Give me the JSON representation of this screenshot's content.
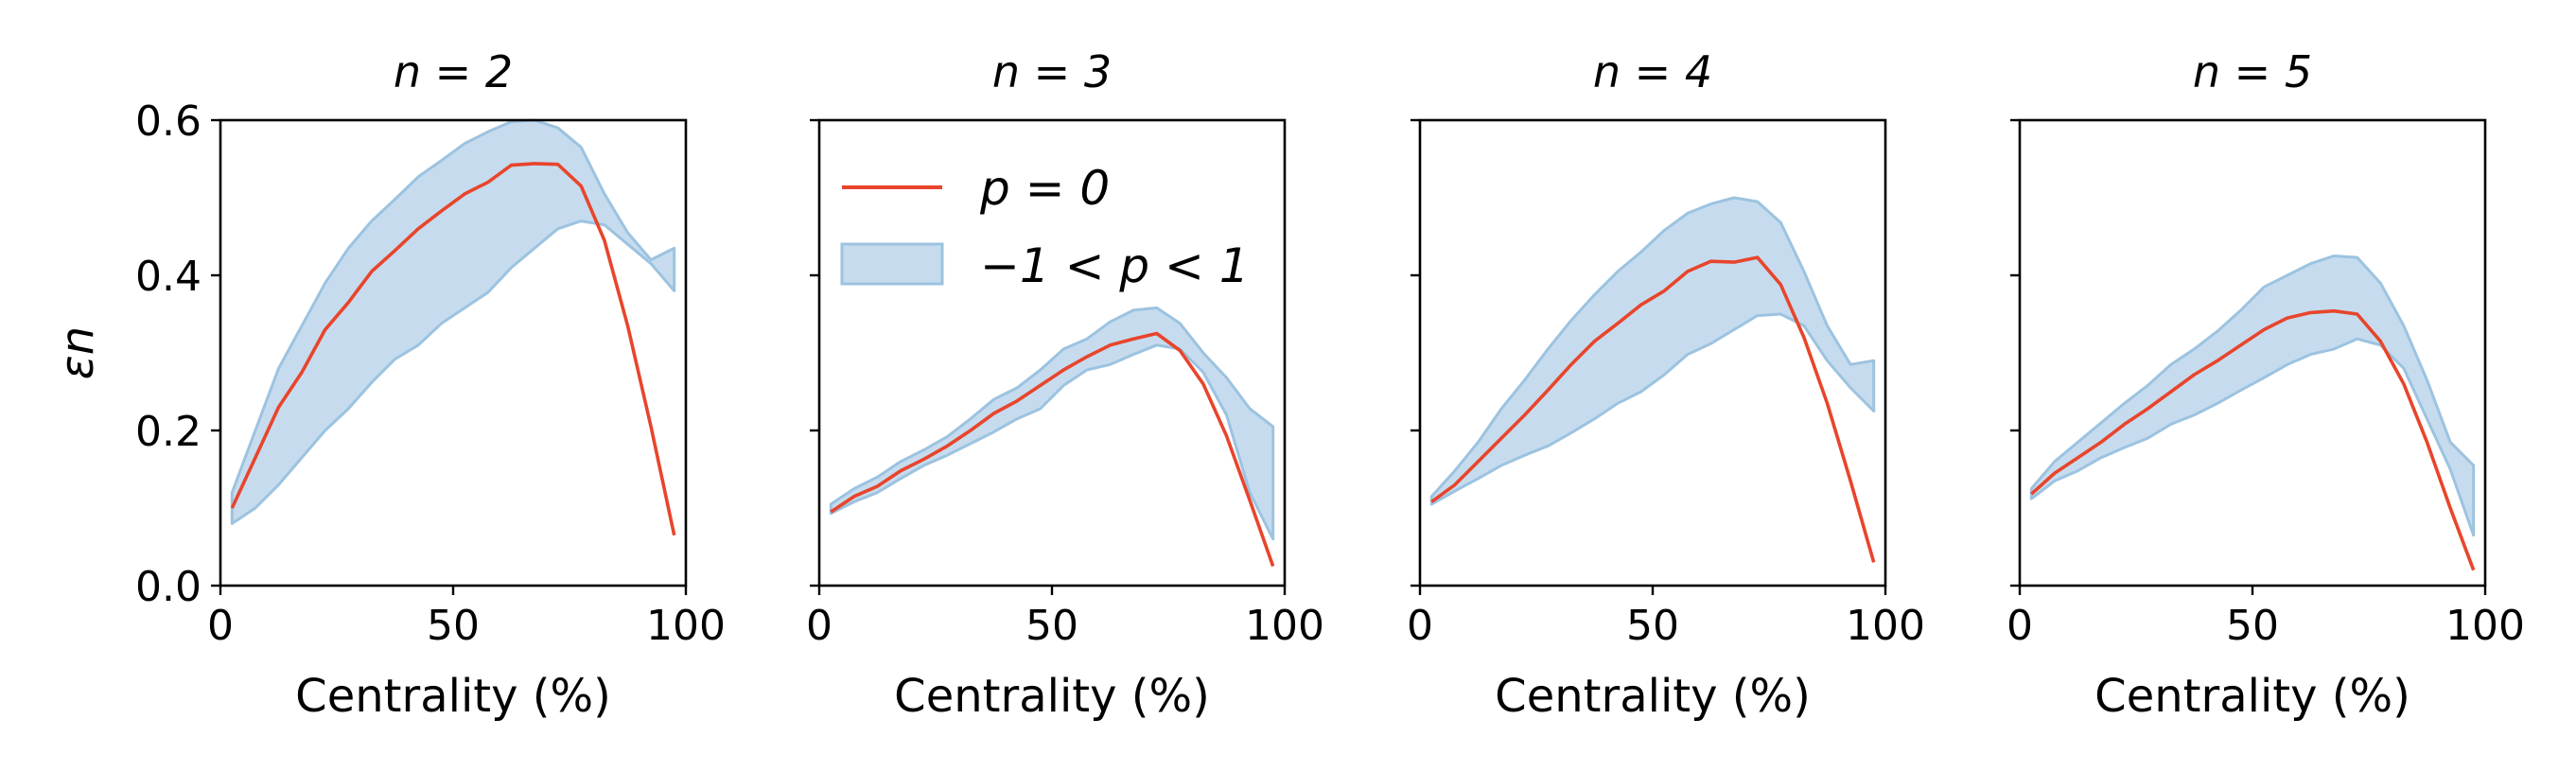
{
  "colors": {
    "line": "#e8452c",
    "band_fill": "#c6dcee",
    "band_edge": "#9cc3e0"
  },
  "chart_data": [
    {
      "type": "line",
      "title": "n = 2",
      "xlabel": "Centrality (%)",
      "ylabel": "εn",
      "xlim": [
        0,
        100
      ],
      "ylim": [
        0,
        0.6
      ],
      "xticks": [
        "0",
        "50",
        "100"
      ],
      "yticks": [
        "0.0",
        "0.2",
        "0.4",
        "0.6"
      ],
      "series": [
        {
          "name": "p = 0",
          "x": [
            2.5,
            7.5,
            12.5,
            17.5,
            22.5,
            27.5,
            32.5,
            37.5,
            42.5,
            47.5,
            52.5,
            57.5,
            62.5,
            67.5,
            72.5,
            77.5,
            82.5,
            87.5,
            92.5,
            97.5
          ],
          "y": [
            0.1,
            0.165,
            0.23,
            0.275,
            0.33,
            0.365,
            0.405,
            0.432,
            0.46,
            0.483,
            0.505,
            0.52,
            0.542,
            0.544,
            0.543,
            0.515,
            0.445,
            0.335,
            0.205,
            0.065
          ]
        },
        {
          "name": "−1 < p < 1",
          "x": [
            2.5,
            7.5,
            12.5,
            17.5,
            22.5,
            27.5,
            32.5,
            37.5,
            42.5,
            47.5,
            52.5,
            57.5,
            62.5,
            67.5,
            72.5,
            77.5,
            82.5,
            87.5,
            92.5,
            97.5
          ],
          "low": [
            0.08,
            0.1,
            0.13,
            0.165,
            0.2,
            0.228,
            0.262,
            0.292,
            0.31,
            0.338,
            0.358,
            0.378,
            0.41,
            0.435,
            0.46,
            0.47,
            0.465,
            0.44,
            0.415,
            0.38
          ],
          "high": [
            0.12,
            0.2,
            0.28,
            0.335,
            0.39,
            0.435,
            0.47,
            0.498,
            0.527,
            0.548,
            0.57,
            0.585,
            0.598,
            0.6,
            0.59,
            0.565,
            0.505,
            0.455,
            0.42,
            0.435
          ]
        }
      ]
    },
    {
      "type": "line",
      "title": "n = 3",
      "xlabel": "Centrality (%)",
      "ylabel": "",
      "xlim": [
        0,
        100
      ],
      "ylim": [
        0,
        0.6
      ],
      "xticks": [
        "0",
        "50",
        "100"
      ],
      "yticks": [],
      "legend_position": "upper-left",
      "legend": [
        "p = 0",
        "−1 < p < 1"
      ],
      "series": [
        {
          "name": "p = 0",
          "x": [
            2.5,
            7.5,
            12.5,
            17.5,
            22.5,
            27.5,
            32.5,
            37.5,
            42.5,
            47.5,
            52.5,
            57.5,
            62.5,
            67.5,
            72.5,
            77.5,
            82.5,
            87.5,
            92.5,
            97.5
          ],
          "y": [
            0.095,
            0.115,
            0.128,
            0.148,
            0.163,
            0.18,
            0.2,
            0.222,
            0.238,
            0.258,
            0.278,
            0.295,
            0.31,
            0.318,
            0.325,
            0.303,
            0.26,
            0.193,
            0.11,
            0.025
          ]
        },
        {
          "name": "−1 < p < 1",
          "x": [
            2.5,
            7.5,
            12.5,
            17.5,
            22.5,
            27.5,
            32.5,
            37.5,
            42.5,
            47.5,
            52.5,
            57.5,
            62.5,
            67.5,
            72.5,
            77.5,
            82.5,
            87.5,
            92.5,
            97.5
          ],
          "low": [
            0.093,
            0.108,
            0.12,
            0.138,
            0.155,
            0.168,
            0.183,
            0.198,
            0.215,
            0.228,
            0.258,
            0.278,
            0.285,
            0.298,
            0.31,
            0.305,
            0.275,
            0.22,
            0.12,
            0.06
          ],
          "high": [
            0.105,
            0.125,
            0.14,
            0.16,
            0.175,
            0.192,
            0.215,
            0.24,
            0.255,
            0.278,
            0.305,
            0.318,
            0.34,
            0.355,
            0.358,
            0.338,
            0.3,
            0.268,
            0.228,
            0.205
          ]
        }
      ]
    },
    {
      "type": "line",
      "title": "n = 4",
      "xlabel": "Centrality (%)",
      "ylabel": "",
      "xlim": [
        0,
        100
      ],
      "ylim": [
        0,
        0.6
      ],
      "xticks": [
        "0",
        "50",
        "100"
      ],
      "yticks": [],
      "series": [
        {
          "name": "p = 0",
          "x": [
            2.5,
            7.5,
            12.5,
            17.5,
            22.5,
            27.5,
            32.5,
            37.5,
            42.5,
            47.5,
            52.5,
            57.5,
            62.5,
            67.5,
            72.5,
            77.5,
            82.5,
            87.5,
            92.5,
            97.5
          ],
          "y": [
            0.108,
            0.13,
            0.16,
            0.19,
            0.22,
            0.252,
            0.285,
            0.315,
            0.338,
            0.362,
            0.38,
            0.405,
            0.418,
            0.417,
            0.423,
            0.388,
            0.32,
            0.235,
            0.135,
            0.03
          ]
        },
        {
          "name": "−1 < p < 1",
          "x": [
            2.5,
            7.5,
            12.5,
            17.5,
            22.5,
            27.5,
            32.5,
            37.5,
            42.5,
            47.5,
            52.5,
            57.5,
            62.5,
            67.5,
            72.5,
            77.5,
            82.5,
            87.5,
            92.5,
            97.5
          ],
          "low": [
            0.105,
            0.122,
            0.138,
            0.155,
            0.168,
            0.18,
            0.197,
            0.215,
            0.235,
            0.25,
            0.272,
            0.298,
            0.312,
            0.33,
            0.348,
            0.35,
            0.335,
            0.29,
            0.255,
            0.225
          ],
          "high": [
            0.115,
            0.148,
            0.185,
            0.228,
            0.265,
            0.305,
            0.342,
            0.375,
            0.405,
            0.43,
            0.458,
            0.48,
            0.492,
            0.5,
            0.495,
            0.468,
            0.405,
            0.335,
            0.285,
            0.29
          ]
        }
      ]
    },
    {
      "type": "line",
      "title": "n = 5",
      "xlabel": "Centrality (%)",
      "ylabel": "",
      "xlim": [
        0,
        100
      ],
      "ylim": [
        0,
        0.6
      ],
      "xticks": [
        "0",
        "50",
        "100"
      ],
      "yticks": [],
      "series": [
        {
          "name": "p = 0",
          "x": [
            2.5,
            7.5,
            12.5,
            17.5,
            22.5,
            27.5,
            32.5,
            37.5,
            42.5,
            47.5,
            52.5,
            57.5,
            62.5,
            67.5,
            72.5,
            77.5,
            82.5,
            87.5,
            92.5,
            97.5
          ],
          "y": [
            0.118,
            0.145,
            0.165,
            0.185,
            0.208,
            0.228,
            0.25,
            0.272,
            0.29,
            0.31,
            0.33,
            0.345,
            0.352,
            0.354,
            0.35,
            0.315,
            0.26,
            0.185,
            0.1,
            0.02
          ]
        },
        {
          "name": "−1 < p < 1",
          "x": [
            2.5,
            7.5,
            12.5,
            17.5,
            22.5,
            27.5,
            32.5,
            37.5,
            42.5,
            47.5,
            52.5,
            57.5,
            62.5,
            67.5,
            72.5,
            77.5,
            82.5,
            87.5,
            92.5,
            97.5
          ],
          "low": [
            0.112,
            0.135,
            0.148,
            0.165,
            0.178,
            0.19,
            0.208,
            0.22,
            0.235,
            0.252,
            0.268,
            0.285,
            0.298,
            0.305,
            0.318,
            0.31,
            0.28,
            0.215,
            0.15,
            0.065
          ],
          "high": [
            0.125,
            0.16,
            0.185,
            0.21,
            0.235,
            0.258,
            0.285,
            0.305,
            0.328,
            0.355,
            0.385,
            0.4,
            0.415,
            0.425,
            0.423,
            0.39,
            0.335,
            0.265,
            0.185,
            0.155
          ]
        }
      ]
    }
  ]
}
